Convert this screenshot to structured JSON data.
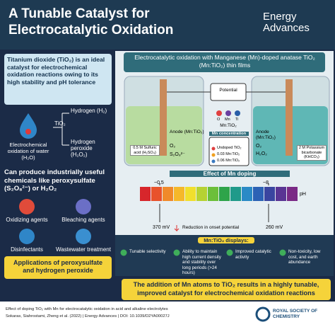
{
  "header": {
    "title": "A Tunable Catalyst for Electrocatalytic Oxidation",
    "journal": "Energy Advances"
  },
  "left": {
    "intro": "Titanium dioxide (TiO₂) is an ideal catalyst for electrochemical oxidation reactions owing to its high stability and pH tolerance",
    "process": "Electrochemical oxidation of water (H₂O)",
    "catalyst": "TiO₂",
    "product_1": "Hydrogen (H₂)",
    "product_2": "Hydrogen peroxide (H₂O₂)",
    "chemicals": "Can produce industrially useful chemicals like peroxysulfate (S₂O₈²⁻) or H₂O₂",
    "uses": [
      "Oxidizing agents",
      "Bleaching agents",
      "Disinfectants",
      "Wastewater treatment"
    ],
    "applications": "Applications of peroxysulfate and hydrogen peroxide"
  },
  "right": {
    "title": "Electrocatalytic oxidation with Manganese (Mn)-doped anatase TiO₂ (Mn:TiO₂) thin films",
    "potential": "Potential",
    "atoms": [
      "O",
      "Mn",
      "Ti"
    ],
    "film": "Mn:TiO₂",
    "acid_cell": {
      "anode": "Anode (Mn:TiO₂)",
      "products": [
        "O₂",
        "S₂O₈²⁻"
      ],
      "electrolyte": "0.5 M Sulfuric acid (H₂SO₄)"
    },
    "mn_concentration": {
      "title": "Mn concentration",
      "levels": [
        "Undoped TiO₂",
        "0.03 Mn:TiO₂",
        "0.06 Mn:TiO₂"
      ]
    },
    "alkaline_cell": {
      "anode": "Anode (Mn:TiO₂)",
      "products": [
        "O₂",
        "H₂O₂"
      ],
      "electrolyte": "2 M Potassium bicarbonate (KHCO₃)"
    },
    "effect": {
      "title": "Effect of Mn doping",
      "ph_low": "~0.5",
      "ph_high": "~8",
      "ph_label": "pH",
      "acid_drop": "370 mV",
      "legend": "Reduction in onset potential",
      "alkaline_drop": "260 mV"
    },
    "displays": {
      "title": "Mn:TiO₂ displays:",
      "items": [
        "Tunable selectivity",
        "Ability to maintain high current density and stability over long periods (>24 hours)",
        "Improved catalytic activity",
        "Non-toxicity, low cost, and earth abundance"
      ]
    },
    "conclusion": "The addition of Mn atoms to TiO₂ results in a highly tunable, improved catalyst for electrochemical oxidation reactions"
  },
  "footer": {
    "caption": "Effect of doping TiO₂ with Mn for electrocatalytic oxidation in acid and alkaline electrolytes",
    "citation": "Sokaras, Siahrostami, Zheng et al. (2022) | Energy Advances | DOI: 10.1039/D2YA00027J",
    "publisher": "ROYAL SOCIETY OF CHEMISTRY"
  }
}
